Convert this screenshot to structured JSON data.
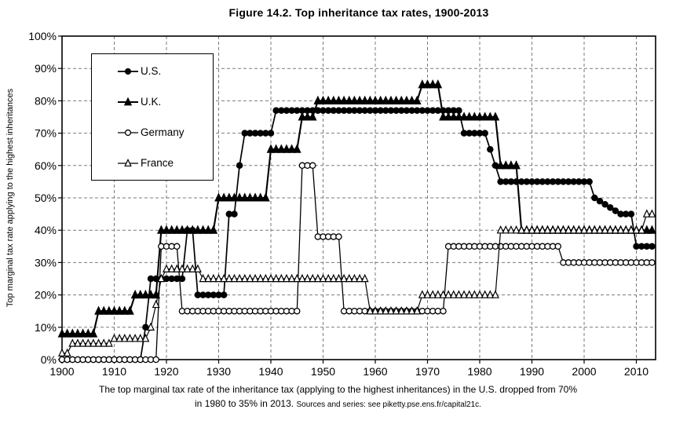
{
  "colors": {
    "line": "#000000",
    "grid": "#7a7a7a",
    "background": "#ffffff"
  },
  "caption": {
    "line1": "The top marginal tax rate of the inheritance tax (applying to the highest inheritances) in the U.S. dropped from 70%",
    "line2": "in 1980 to 35% in 2013.",
    "sources": "Sources and series: see piketty.pse.ens.fr/capital21c."
  },
  "chart_data": {
    "type": "line",
    "title": "Figure 14.2. Top inheritance tax rates, 1900-2013",
    "xlabel": "",
    "ylabel": "Top marginal tax rate applying to the highest inheritances",
    "x_range": [
      1900,
      2013
    ],
    "ylim": [
      0,
      100
    ],
    "grid": "dashed",
    "legend_position": "top-left",
    "x_ticks": [
      1900,
      1910,
      1920,
      1930,
      1940,
      1950,
      1960,
      1970,
      1980,
      1990,
      2000,
      2010
    ],
    "y_ticks": [
      {
        "value": 0,
        "label": "0%"
      },
      {
        "value": 10,
        "label": "10%"
      },
      {
        "value": 20,
        "label": "20%"
      },
      {
        "value": 30,
        "label": "30%"
      },
      {
        "value": 40,
        "label": "40%"
      },
      {
        "value": 50,
        "label": "50%"
      },
      {
        "value": 60,
        "label": "60%"
      },
      {
        "value": 70,
        "label": "70%"
      },
      {
        "value": 80,
        "label": "80%"
      },
      {
        "value": 90,
        "label": "90%"
      },
      {
        "value": 100,
        "label": "100%"
      }
    ],
    "series": [
      {
        "name": "U.S.",
        "marker": "filled-circle",
        "steps": [
          [
            1900,
            1915,
            0
          ],
          [
            1916,
            1916,
            10
          ],
          [
            1917,
            1923,
            25
          ],
          [
            1924,
            1925,
            40
          ],
          [
            1926,
            1931,
            20
          ],
          [
            1932,
            1933,
            45
          ],
          [
            1934,
            1934,
            60
          ],
          [
            1935,
            1940,
            70
          ],
          [
            1941,
            1976,
            77
          ],
          [
            1977,
            1981,
            70
          ],
          [
            1982,
            1982,
            65
          ],
          [
            1983,
            1983,
            60
          ],
          [
            1984,
            2001,
            55
          ],
          [
            2002,
            2002,
            50
          ],
          [
            2003,
            2003,
            49
          ],
          [
            2004,
            2004,
            48
          ],
          [
            2005,
            2005,
            47
          ],
          [
            2006,
            2006,
            46
          ],
          [
            2007,
            2009,
            45
          ],
          [
            2010,
            2013,
            35
          ]
        ]
      },
      {
        "name": "U.K.",
        "marker": "filled-triangle",
        "steps": [
          [
            1900,
            1906,
            8
          ],
          [
            1907,
            1913,
            15
          ],
          [
            1914,
            1918,
            20
          ],
          [
            1919,
            1929,
            40
          ],
          [
            1930,
            1939,
            50
          ],
          [
            1940,
            1945,
            65
          ],
          [
            1946,
            1948,
            75
          ],
          [
            1949,
            1968,
            80
          ],
          [
            1969,
            1972,
            85
          ],
          [
            1973,
            1983,
            75
          ],
          [
            1984,
            1987,
            60
          ],
          [
            1988,
            2013,
            40
          ]
        ]
      },
      {
        "name": "Germany",
        "marker": "open-circle",
        "steps": [
          [
            1900,
            1918,
            0
          ],
          [
            1919,
            1922,
            35
          ],
          [
            1923,
            1945,
            15
          ],
          [
            1946,
            1948,
            60
          ],
          [
            1949,
            1953,
            38
          ],
          [
            1954,
            1973,
            15
          ],
          [
            1974,
            1995,
            35
          ],
          [
            1996,
            2013,
            30
          ]
        ]
      },
      {
        "name": "France",
        "marker": "open-triangle",
        "steps": [
          [
            1900,
            1901,
            2
          ],
          [
            1902,
            1909,
            5
          ],
          [
            1910,
            1916,
            6.5
          ],
          [
            1917,
            1917,
            10
          ],
          [
            1918,
            1918,
            17
          ],
          [
            1919,
            1919,
            25
          ],
          [
            1920,
            1926,
            28
          ],
          [
            1927,
            1958,
            25
          ],
          [
            1959,
            1968,
            15
          ],
          [
            1969,
            1983,
            20
          ],
          [
            1984,
            2011,
            40
          ],
          [
            2012,
            2013,
            45
          ]
        ]
      }
    ]
  }
}
